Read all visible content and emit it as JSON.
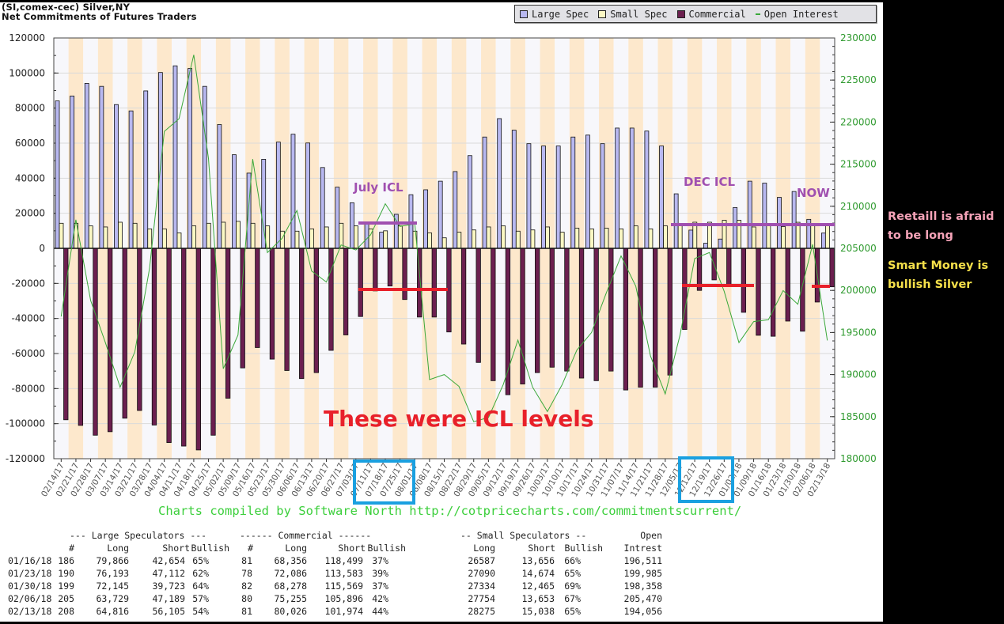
{
  "header": {
    "line1": "(SI,comex-cec) Silver,NY",
    "line2": "Net Commitments of Futures Traders"
  },
  "legend": [
    {
      "label": "Large Spec",
      "color": "#b8b8f0"
    },
    {
      "label": "Small Spec",
      "color": "#fbf8c4"
    },
    {
      "label": "Commercial",
      "color": "#6b1f4f"
    },
    {
      "label": "Open Interest",
      "color": "#3aa83a"
    }
  ],
  "chart_data": {
    "type": "bar",
    "title": "Net Commitments of Futures Traders",
    "categories": [
      "02/14/17",
      "02/21/17",
      "02/28/17",
      "03/07/17",
      "03/14/17",
      "03/21/17",
      "03/28/17",
      "04/04/17",
      "04/11/17",
      "04/18/17",
      "04/25/17",
      "05/02/17",
      "05/09/17",
      "05/16/17",
      "05/23/17",
      "05/30/17",
      "06/06/17",
      "06/13/17",
      "06/20/17",
      "06/27/17",
      "07/03/17",
      "07/11/17",
      "07/18/17",
      "07/25/17",
      "08/01/17",
      "08/08/17",
      "08/15/17",
      "08/22/17",
      "08/29/17",
      "09/05/17",
      "09/12/17",
      "09/19/17",
      "09/26/17",
      "10/03/17",
      "10/10/17",
      "10/17/17",
      "10/24/17",
      "10/31/17",
      "11/07/17",
      "11/14/17",
      "11/21/17",
      "11/28/17",
      "12/05/17",
      "12/12/17",
      "12/19/17",
      "12/26/17",
      "01/02/18",
      "01/09/18",
      "01/16/18",
      "01/23/18",
      "01/30/18",
      "02/06/18",
      "02/13/18"
    ],
    "series": [
      {
        "name": "Large Spec",
        "axis": "left",
        "kind": "bar",
        "values": [
          84100,
          86900,
          94100,
          92400,
          82000,
          78400,
          89800,
          100300,
          104100,
          102600,
          92400,
          70600,
          53400,
          42900,
          50800,
          60600,
          65100,
          60100,
          46100,
          34900,
          26000,
          14100,
          9200,
          19400,
          30600,
          33400,
          38300,
          43800,
          52900,
          63500,
          74000,
          67400,
          59700,
          58400,
          58400,
          63500,
          64600,
          59700,
          68600,
          68600,
          66900,
          58400,
          31100,
          10400,
          2900,
          5300,
          23300,
          38300,
          37212,
          29081,
          32422,
          16540,
          8711
        ]
      },
      {
        "name": "Small Spec",
        "axis": "left",
        "kind": "bar",
        "values": [
          14300,
          14300,
          12800,
          12200,
          14900,
          14300,
          11100,
          11100,
          8800,
          12800,
          14300,
          14900,
          15400,
          14300,
          12800,
          9800,
          9800,
          11100,
          12200,
          14300,
          12800,
          11000,
          10000,
          12800,
          9800,
          8800,
          6000,
          9200,
          10500,
          12200,
          12800,
          9800,
          10500,
          12200,
          9200,
          11500,
          11100,
          11500,
          11100,
          12800,
          11100,
          12800,
          14100,
          14900,
          14900,
          16000,
          16000,
          12200,
          12931,
          12416,
          14869,
          14101,
          13237
        ]
      },
      {
        "name": "Commercial",
        "axis": "left",
        "kind": "bar",
        "values": [
          -97800,
          -101000,
          -106600,
          -104600,
          -96900,
          -92500,
          -100800,
          -110800,
          -112800,
          -115000,
          -106600,
          -85500,
          -68200,
          -56600,
          -63200,
          -69700,
          -74300,
          -70900,
          -58200,
          -49400,
          -38900,
          -24300,
          -21500,
          -29200,
          -39200,
          -39200,
          -47700,
          -54600,
          -65100,
          -75500,
          -83500,
          -77400,
          -70900,
          -67800,
          -70000,
          -74000,
          -75500,
          -70000,
          -80800,
          -79200,
          -79200,
          -72300,
          -46300,
          -24000,
          -18000,
          -21000,
          -36500,
          -49600,
          -50143,
          -41497,
          -47291,
          -30641,
          -21948
        ]
      },
      {
        "name": "Open Interest",
        "axis": "right",
        "kind": "line",
        "values": [
          196900,
          208400,
          198800,
          193800,
          188500,
          192700,
          202600,
          218900,
          220400,
          228000,
          215700,
          190700,
          194700,
          215600,
          204500,
          206200,
          209500,
          202300,
          201000,
          205400,
          204800,
          206600,
          210300,
          207600,
          207900,
          189400,
          190000,
          188600,
          184400,
          184900,
          188800,
          194100,
          188500,
          185600,
          188800,
          192900,
          195000,
          199700,
          204100,
          200500,
          192200,
          187700,
          194700,
          203800,
          204500,
          199900,
          193800,
          196300,
          196511,
          199985,
          198358,
          205470,
          194056
        ]
      }
    ],
    "y_left": {
      "min": -120000,
      "max": 120000,
      "step": 20000,
      "ticks": [
        "120000",
        "100000",
        "80000",
        "60000",
        "40000",
        "20000",
        "0",
        "-20000",
        "-40000",
        "-60000",
        "-80000",
        "-100000",
        "-120000"
      ]
    },
    "y_right": {
      "min": 180000,
      "max": 230000,
      "step": 5000,
      "ticks": [
        "230000",
        "225000",
        "220000",
        "215000",
        "210000",
        "205000",
        "200000",
        "195000",
        "190000",
        "185000",
        "180000"
      ]
    },
    "grid": true,
    "legend_position": "top-right"
  },
  "annotations": {
    "july_icl": "July ICL",
    "dec_icl": "DEC ICL",
    "now": "NOW",
    "icl_levels": "These were ICL levels",
    "retail_1": "Reetaill is afraid",
    "retail_2": "to be long",
    "smart_1": "Smart Money is",
    "smart_2": "bullish Silver",
    "purple": "#a050b0",
    "red": "#e8202a",
    "blue": "#1aa0e0"
  },
  "footer": "Charts compiled by Software North  http://cotpricecharts.com/commitmentscurrent/",
  "table": {
    "group_large": "--- Large Speculators ---",
    "group_comm": "------ Commercial ------",
    "group_small": "-- Small Speculators --",
    "group_oi": "Open",
    "h_num": "#",
    "h_long": "Long",
    "h_short": "Short",
    "h_bullish": "Bullish",
    "h_oi": "Intrest",
    "rows": [
      {
        "date": "01/16/18",
        "ls_n": "186",
        "ls_long": "79,866",
        "ls_short": "42,654",
        "ls_bull": "65%",
        "cm_n": "81",
        "cm_long": "68,356",
        "cm_short": "118,499",
        "cm_bull": "37%",
        "ss_long": "26587",
        "ss_short": "13,656",
        "ss_bull": "66%",
        "oi": "196,511"
      },
      {
        "date": "01/23/18",
        "ls_n": "190",
        "ls_long": "76,193",
        "ls_short": "47,112",
        "ls_bull": "62%",
        "cm_n": "78",
        "cm_long": "72,086",
        "cm_short": "113,583",
        "cm_bull": "39%",
        "ss_long": "27090",
        "ss_short": "14,674",
        "ss_bull": "65%",
        "oi": "199,985"
      },
      {
        "date": "01/30/18",
        "ls_n": "199",
        "ls_long": "72,145",
        "ls_short": "39,723",
        "ls_bull": "64%",
        "cm_n": "82",
        "cm_long": "68,278",
        "cm_short": "115,569",
        "cm_bull": "37%",
        "ss_long": "27334",
        "ss_short": "12,465",
        "ss_bull": "69%",
        "oi": "198,358"
      },
      {
        "date": "02/06/18",
        "ls_n": "205",
        "ls_long": "63,729",
        "ls_short": "47,189",
        "ls_bull": "57%",
        "cm_n": "80",
        "cm_long": "75,255",
        "cm_short": "105,896",
        "cm_bull": "42%",
        "ss_long": "27754",
        "ss_short": "13,653",
        "ss_bull": "67%",
        "oi": "205,470"
      },
      {
        "date": "02/13/18",
        "ls_n": "208",
        "ls_long": "64,816",
        "ls_short": "56,105",
        "ls_bull": "54%",
        "cm_n": "81",
        "cm_long": "80,026",
        "cm_short": "101,974",
        "cm_bull": "44%",
        "ss_long": "28275",
        "ss_short": "15,038",
        "ss_bull": "65%",
        "oi": "194,056"
      }
    ]
  }
}
